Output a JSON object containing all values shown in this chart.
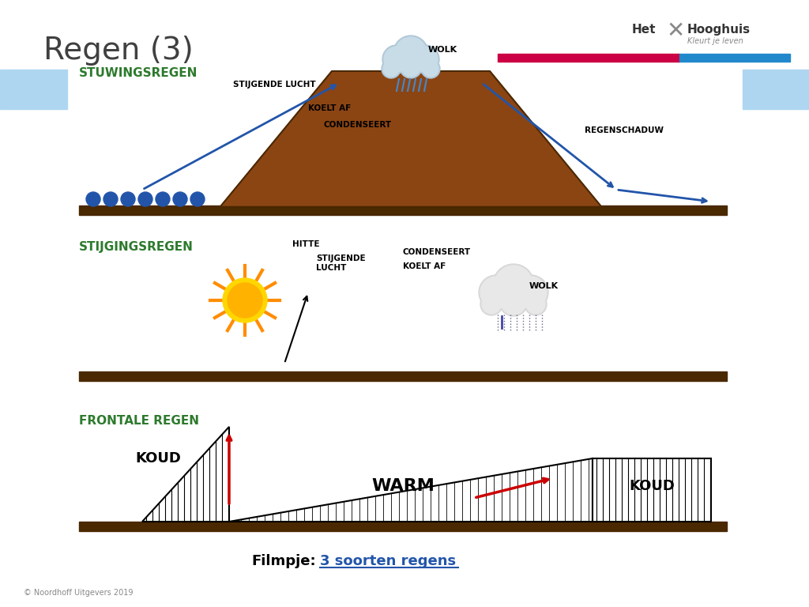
{
  "title": "Regen (3)",
  "title_color": "#404040",
  "title_fontsize": 28,
  "bg_color": "#ffffff",
  "bar_red": "#cc0044",
  "bar_blue": "#2288cc",
  "bar_light_blue": "#aed6f1",
  "label_stuwing": "STUWINGSREGEN",
  "label_stijging": "STIJGINGSREGEN",
  "label_frontale": "FRONTALE REGEN",
  "label_color": "#2d7a2d",
  "label_fontsize": 11,
  "filmpje_text": "Filmpje:",
  "filmpje_link": "3 soorten regens",
  "filmpje_link_color": "#2255aa",
  "copyright_text": "© Noordhoff Uitgevers 2019",
  "copyright_color": "#888888",
  "copyright_fontsize": 7
}
